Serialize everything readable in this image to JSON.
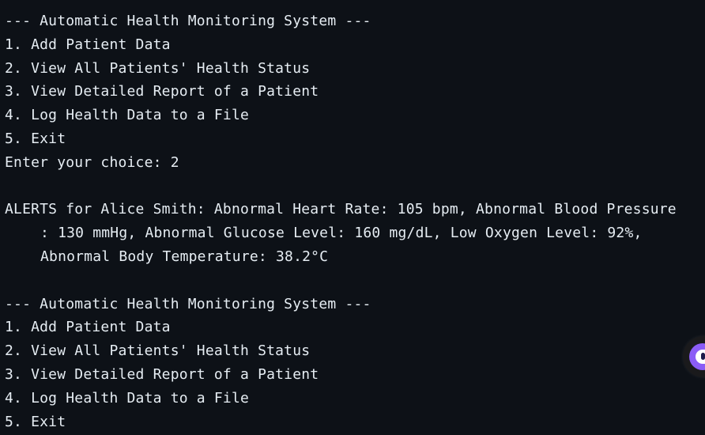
{
  "terminal": {
    "lines": [
      "--- Automatic Health Monitoring System ---",
      "1. Add Patient Data",
      "2. View All Patients' Health Status",
      "3. View Detailed Report of a Patient",
      "4. Log Health Data to a File",
      "5. Exit",
      "Enter your choice: 2",
      "",
      "ALERTS for Alice Smith: Abnormal Heart Rate: 105 bpm, Abnormal Blood Pressure",
      ": 130 mmHg, Abnormal Glucose Level: 160 mg/dL, Low Oxygen Level: 92%,",
      "Abnormal Body Temperature: 38.2°C",
      "",
      "--- Automatic Health Monitoring System ---",
      "1. Add Patient Data",
      "2. View All Patients' Health Status",
      "3. View Detailed Report of a Patient",
      "4. Log Health Data to a File",
      "5. Exit"
    ]
  },
  "floating_button": {
    "icon": "assistant-bot-icon",
    "accent_color": "#8b5cf6"
  },
  "colors": {
    "background": "#0d1117",
    "text": "#e6edf3"
  }
}
